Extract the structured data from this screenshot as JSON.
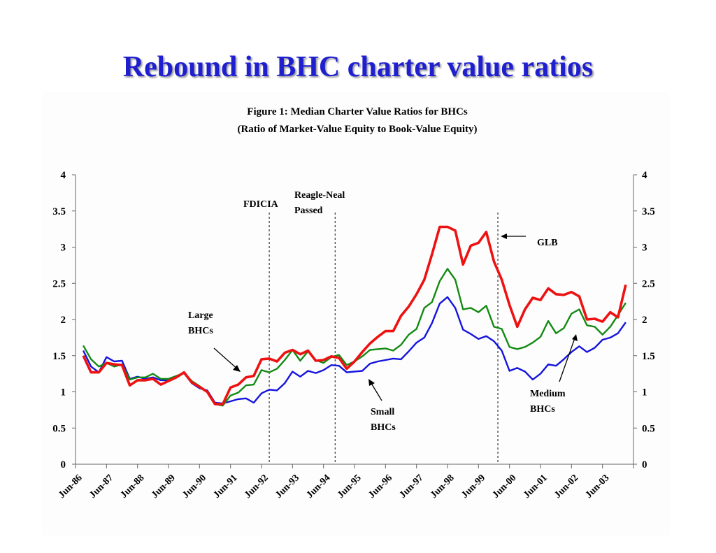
{
  "slide": {
    "title": "Rebound in BHC charter value ratios"
  },
  "chart_data": {
    "type": "line",
    "title": "Figure 1: Median Charter Value Ratios for BHCs",
    "subtitle": "(Ratio of Market-Value Equity to Book-Value Equity)",
    "ylim": [
      0,
      4
    ],
    "y_ticks": [
      "0",
      "0.5",
      "1",
      "1.5",
      "2",
      "2.5",
      "3",
      "3.5",
      "4"
    ],
    "y_tick_values": [
      0,
      0.5,
      1,
      1.5,
      2,
      2.5,
      3,
      3.5,
      4
    ],
    "x_tick_labels": [
      "Jun-86",
      "Jun-87",
      "Jun-88",
      "Jun-89",
      "Jun-90",
      "Jun-91",
      "Jun-92",
      "Jun-93",
      "Jun-94",
      "Jun-95",
      "Jun-96",
      "Jun-97",
      "Jun-98",
      "Jun-99",
      "Jun-00",
      "Jun-01",
      "Jun-02",
      "Jun-03"
    ],
    "x_start": "Jun-86",
    "quarters_per_tick": 4,
    "grid": false,
    "secondary_y_axis": true,
    "series": [
      {
        "key": "large",
        "color": "#ee1111",
        "values": [
          1.5,
          1.27,
          1.27,
          1.4,
          1.38,
          1.37,
          1.09,
          1.16,
          1.16,
          1.18,
          1.1,
          1.15,
          1.2,
          1.27,
          1.13,
          1.07,
          1.0,
          0.83,
          0.83,
          1.06,
          1.1,
          1.2,
          1.22,
          1.45,
          1.46,
          1.42,
          1.54,
          1.58,
          1.52,
          1.57,
          1.43,
          1.44,
          1.49,
          1.47,
          1.32,
          1.42,
          1.55,
          1.67,
          1.76,
          1.84,
          1.84,
          2.05,
          2.18,
          2.35,
          2.55,
          2.9,
          3.28,
          3.28,
          3.23,
          2.76,
          3.02,
          3.06,
          3.21,
          2.8,
          2.55,
          2.2,
          1.9,
          2.14,
          2.3,
          2.27,
          2.43,
          2.35,
          2.34,
          2.38,
          2.32,
          2.0,
          2.01,
          1.97,
          2.1,
          2.03,
          2.48
        ]
      },
      {
        "key": "medium",
        "color": "#138a13",
        "values": [
          1.64,
          1.45,
          1.35,
          1.4,
          1.35,
          1.38,
          1.17,
          1.2,
          1.2,
          1.25,
          1.18,
          1.18,
          1.22,
          1.26,
          1.15,
          1.08,
          1.0,
          0.83,
          0.81,
          0.95,
          0.99,
          1.09,
          1.1,
          1.3,
          1.27,
          1.32,
          1.44,
          1.58,
          1.43,
          1.56,
          1.44,
          1.4,
          1.48,
          1.51,
          1.37,
          1.42,
          1.49,
          1.58,
          1.59,
          1.6,
          1.57,
          1.65,
          1.79,
          1.87,
          2.16,
          2.24,
          2.53,
          2.7,
          2.55,
          2.14,
          2.16,
          2.1,
          2.19,
          1.9,
          1.87,
          1.62,
          1.59,
          1.62,
          1.68,
          1.76,
          1.98,
          1.81,
          1.88,
          2.08,
          2.14,
          1.92,
          1.9,
          1.79,
          1.9,
          2.06,
          2.23
        ]
      },
      {
        "key": "small",
        "color": "#1414dd",
        "values": [
          1.57,
          1.35,
          1.27,
          1.48,
          1.42,
          1.43,
          1.18,
          1.21,
          1.18,
          1.2,
          1.16,
          1.16,
          1.2,
          1.26,
          1.12,
          1.05,
          1.02,
          0.85,
          0.84,
          0.87,
          0.9,
          0.91,
          0.85,
          0.98,
          1.03,
          1.02,
          1.12,
          1.28,
          1.21,
          1.29,
          1.26,
          1.3,
          1.37,
          1.36,
          1.27,
          1.28,
          1.29,
          1.39,
          1.42,
          1.44,
          1.46,
          1.45,
          1.56,
          1.68,
          1.75,
          1.95,
          2.22,
          2.31,
          2.16,
          1.86,
          1.8,
          1.73,
          1.77,
          1.7,
          1.57,
          1.29,
          1.33,
          1.28,
          1.17,
          1.25,
          1.38,
          1.36,
          1.45,
          1.55,
          1.63,
          1.55,
          1.61,
          1.72,
          1.75,
          1.81,
          1.96
        ]
      }
    ],
    "event_lines": [
      {
        "quarter": 24
      },
      {
        "quarter": 32.5
      },
      {
        "quarter": 53.5
      }
    ],
    "annotations": {
      "fdicia": "FDICIA",
      "riegle_line1": "Reagle-Neal",
      "riegle_line2": "Passed",
      "glb": "GLB",
      "large_line1": "Large",
      "large_line2": "BHCs",
      "small_line1": "Small",
      "small_line2": "BHCs",
      "medium_line1": "Medium",
      "medium_line2": "BHCs"
    }
  }
}
